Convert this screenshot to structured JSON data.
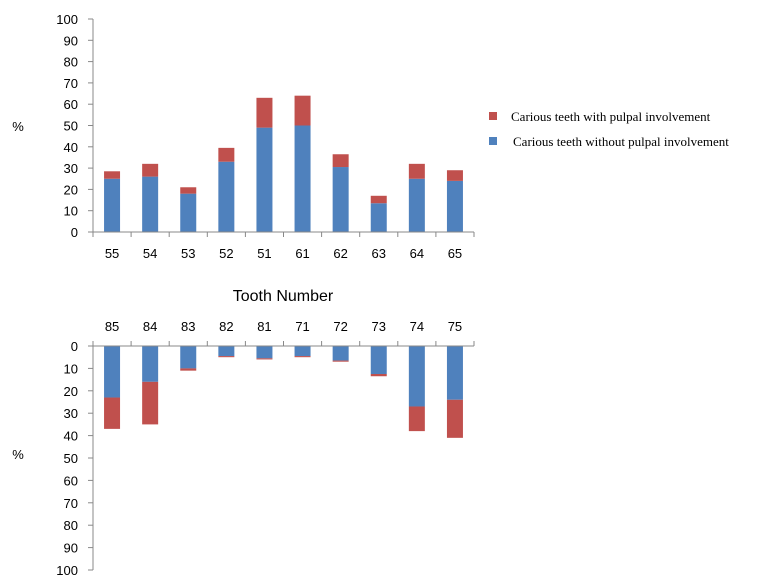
{
  "chart_data": [
    {
      "type": "bar",
      "stacked": true,
      "ylabel": "%",
      "ylim": [
        0,
        100
      ],
      "yticks": [
        0,
        10,
        20,
        30,
        40,
        50,
        60,
        70,
        80,
        90,
        100
      ],
      "categories": [
        "55",
        "54",
        "53",
        "52",
        "51",
        "61",
        "62",
        "63",
        "64",
        "65"
      ],
      "series": [
        {
          "name": "Carious teeth without pulpal involvement",
          "color": "#4f81bd",
          "values": [
            25,
            26,
            18,
            33,
            49,
            50,
            30.5,
            13.5,
            25,
            24
          ]
        },
        {
          "name": "Carious teeth with pulpal involvement",
          "color": "#c0504d",
          "values": [
            3.5,
            6,
            3,
            6.5,
            14,
            14,
            6,
            3.5,
            7,
            5
          ]
        }
      ]
    },
    {
      "type": "bar",
      "stacked": true,
      "inverted": true,
      "xlabel": "Tooth Number",
      "ylabel": "%",
      "ylim": [
        0,
        100
      ],
      "yticks": [
        0,
        10,
        20,
        30,
        40,
        50,
        60,
        70,
        80,
        90,
        100
      ],
      "categories": [
        "85",
        "84",
        "83",
        "82",
        "81",
        "71",
        "72",
        "73",
        "74",
        "75"
      ],
      "series": [
        {
          "name": "Carious teeth without pulpal involvement",
          "color": "#4f81bd",
          "values": [
            23,
            16,
            10,
            4.5,
            5.5,
            4.5,
            6.5,
            12.5,
            27,
            24
          ]
        },
        {
          "name": "Carious teeth with pulpal involvement",
          "color": "#c0504d",
          "values": [
            14,
            19,
            1,
            0.5,
            0.5,
            0.5,
            0.5,
            1,
            11,
            17
          ]
        }
      ]
    }
  ],
  "legend": {
    "placement": "right",
    "items": [
      {
        "label": "Carious teeth with pulpal involvement",
        "color": "#c0504d"
      },
      {
        "label": "Carious teeth without pulpal involvement",
        "color": "#4f81bd"
      }
    ]
  }
}
